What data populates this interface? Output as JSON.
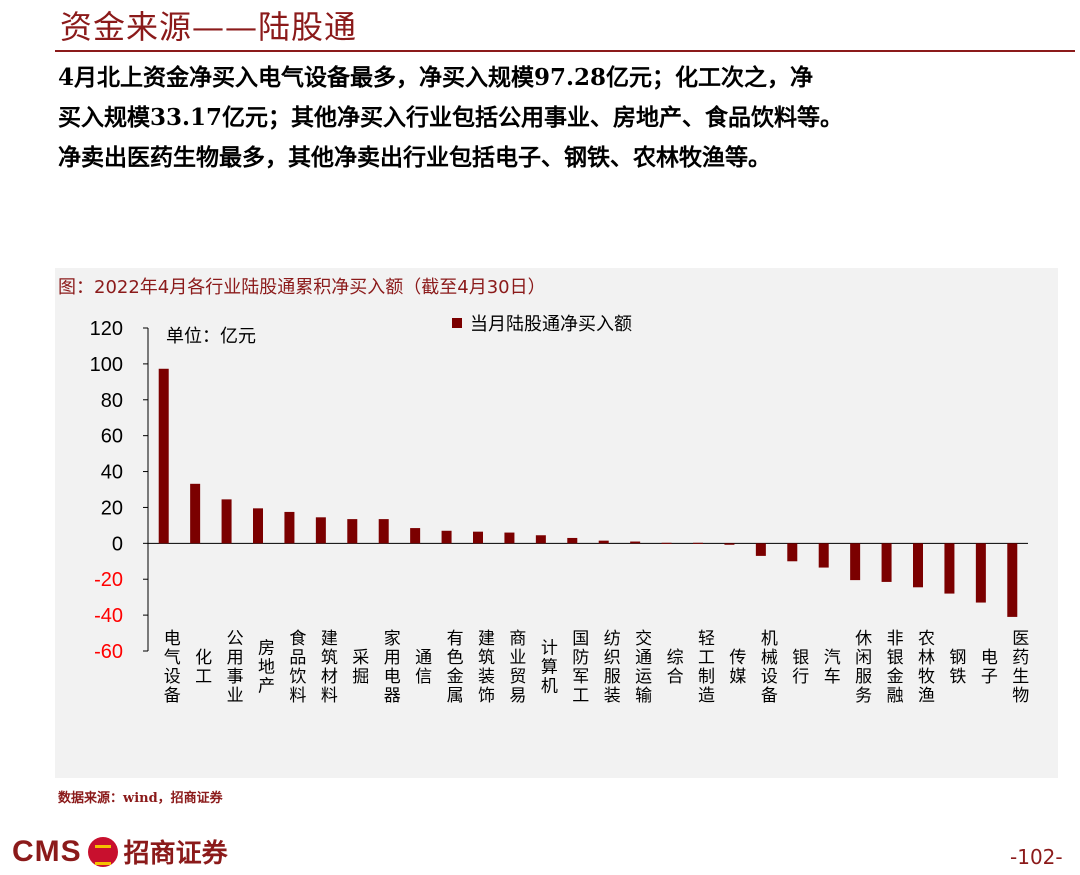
{
  "header": {
    "title": "资金来源——陆股通"
  },
  "body": {
    "lines": [
      "4月北上资金净买入电气设备最多，净买入规模97.28亿元；化工次之，净",
      "买入规模33.17亿元；其他净买入行业包括公用事业、房地产、食品饮料等。",
      "净卖出医药生物最多，其他净卖出行业包括电子、钢铁、农林牧渔等。"
    ]
  },
  "chart_caption": "图：2022年4月各行业陆股通累积净买入额（截至4月30日）",
  "chart_data": {
    "type": "bar",
    "title": "",
    "unit_label": "单位：亿元",
    "legend": "当月陆股通净买入额",
    "ylim": [
      -60,
      120
    ],
    "yticks": [
      120,
      100,
      80,
      60,
      40,
      20,
      0,
      -20,
      -40,
      -60
    ],
    "categories": [
      "电气设备",
      "化工",
      "公用事业",
      "房地产",
      "食品饮料",
      "建筑材料",
      "采掘",
      "家用电器",
      "通信",
      "有色金属",
      "建筑装饰",
      "商业贸易",
      "计算机",
      "国防军工",
      "纺织服装",
      "交通运输",
      "综合",
      "轻工制造",
      "传媒",
      "机械设备",
      "银行",
      "汽车",
      "休闲服务",
      "非银金融",
      "农林牧渔",
      "钢铁",
      "电子",
      "医药生物"
    ],
    "series": [
      {
        "values": [
          97.28,
          33.17,
          24.5,
          19.5,
          17.5,
          14.5,
          13.5,
          13.5,
          8.5,
          7,
          6.5,
          6,
          4.5,
          3,
          1.5,
          1,
          0.3,
          0.3,
          -0.8,
          -7,
          -10,
          -13.5,
          -20.5,
          -21.5,
          -24.5,
          -28,
          -33,
          -41
        ]
      }
    ],
    "colors": {
      "bar": "#7b0000",
      "axis_neg": "#ff0000",
      "axis_pos": "#000000"
    },
    "grid": false,
    "legend_position": "top"
  },
  "source": "数据来源：wind，招商证券",
  "footer": {
    "logo_text": "CMS",
    "company": "招商证券",
    "page": "-102-"
  }
}
